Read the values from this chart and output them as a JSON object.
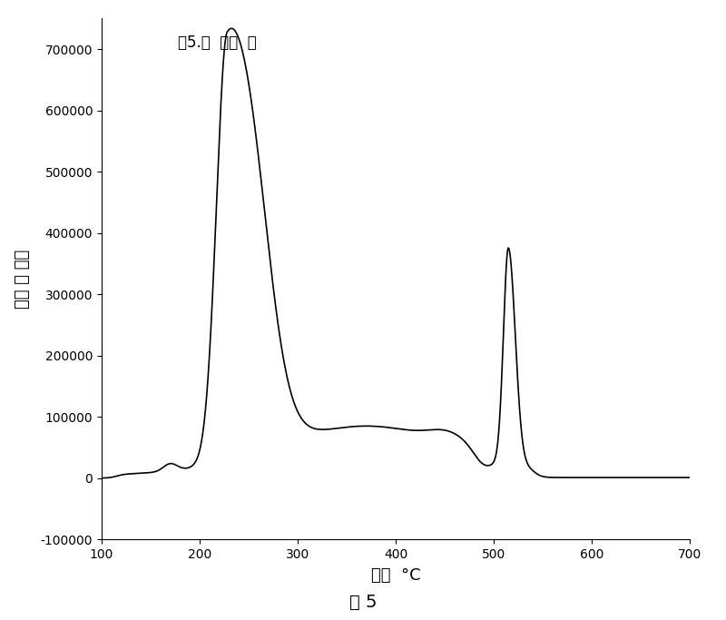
{
  "title_inside": "图5.乙  烯渣  油",
  "xlabel": "沸点  °C",
  "ylabel": "色谱 响 应值",
  "caption": "图 5",
  "xlim": [
    100,
    700
  ],
  "ylim": [
    -100000,
    750000
  ],
  "xticks": [
    100,
    200,
    300,
    400,
    500,
    600,
    700
  ],
  "yticks": [
    -100000,
    0,
    100000,
    200000,
    300000,
    400000,
    500000,
    600000,
    700000
  ],
  "line_color": "#000000",
  "background_color": "#ffffff",
  "figsize": [
    8.0,
    6.83
  ],
  "dpi": 100
}
